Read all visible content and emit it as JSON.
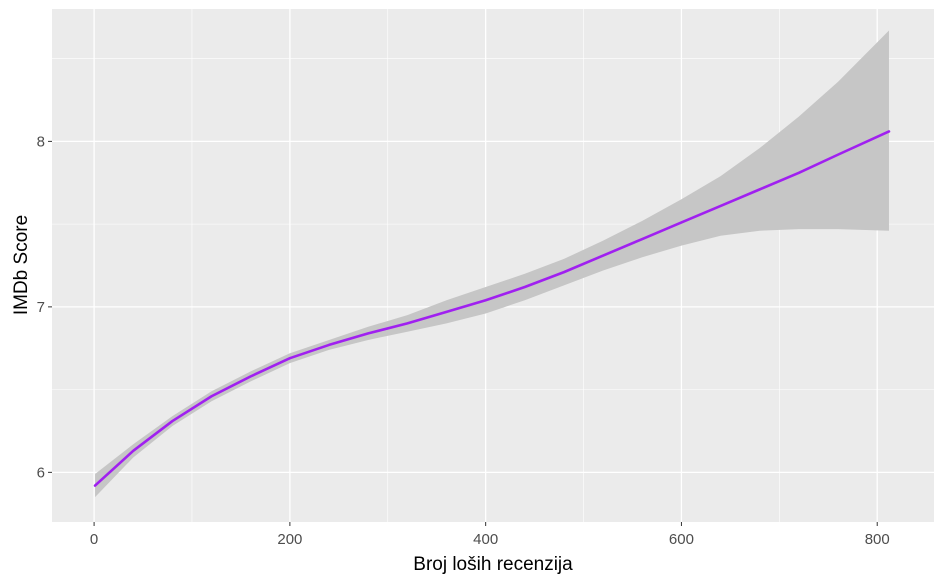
{
  "chart_data": {
    "type": "line",
    "title": "",
    "xlabel": "Broj loših recenzija",
    "ylabel": "IMDb Score",
    "xlim": [
      -43,
      858
    ],
    "ylim": [
      5.7,
      8.8
    ],
    "x_ticks": [
      0,
      200,
      400,
      600,
      800
    ],
    "x_tick_labels": [
      "0",
      "200",
      "400",
      "600",
      "800"
    ],
    "x_minor_ticks": [
      100,
      300,
      500,
      700
    ],
    "y_ticks": [
      6,
      7,
      8
    ],
    "y_tick_labels": [
      "6",
      "7",
      "8"
    ],
    "y_minor_ticks": [
      6.5,
      7.5,
      8.5
    ],
    "grid": true,
    "series": [
      {
        "line_color": "#a020f0",
        "band_color": "#c6c6c6",
        "x": [
          1,
          40,
          80,
          120,
          160,
          200,
          240,
          280,
          320,
          360,
          400,
          440,
          480,
          520,
          560,
          600,
          640,
          680,
          720,
          760,
          812
        ],
        "y": [
          5.92,
          6.13,
          6.31,
          6.46,
          6.58,
          6.69,
          6.77,
          6.84,
          6.9,
          6.97,
          7.04,
          7.12,
          7.21,
          7.31,
          7.41,
          7.51,
          7.61,
          7.71,
          7.81,
          7.92,
          8.06
        ],
        "lower": [
          5.85,
          6.09,
          6.28,
          6.43,
          6.55,
          6.66,
          6.74,
          6.8,
          6.85,
          6.9,
          6.96,
          7.04,
          7.13,
          7.22,
          7.3,
          7.37,
          7.43,
          7.46,
          7.47,
          7.47,
          7.46
        ],
        "upper": [
          5.99,
          6.17,
          6.34,
          6.49,
          6.61,
          6.72,
          6.8,
          6.88,
          6.95,
          7.04,
          7.12,
          7.2,
          7.29,
          7.4,
          7.52,
          7.65,
          7.79,
          7.96,
          8.15,
          8.36,
          8.67
        ]
      }
    ]
  }
}
